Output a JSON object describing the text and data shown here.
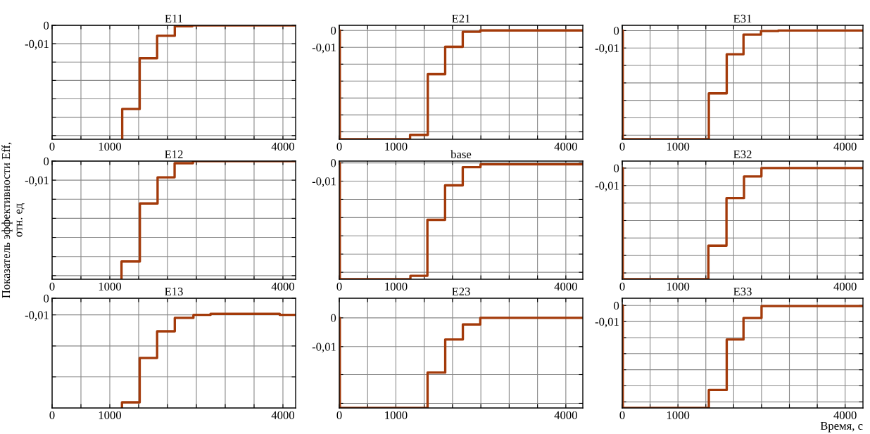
{
  "chart_data": [
    {
      "type": "step",
      "title": "E11",
      "color": "#a33a0a",
      "grid": true,
      "xlim": [
        0,
        4220
      ],
      "ylim": [
        -0.062,
        0
      ],
      "xticks": [
        0,
        {
          "value": 500,
          "label": null
        },
        1000,
        {
          "value": 1500,
          "label": null
        },
        {
          "value": 2000,
          "label": null
        },
        {
          "value": 2500,
          "label": null
        },
        {
          "value": 3000,
          "label": null
        },
        {
          "value": 3500,
          "label": null
        },
        4000
      ],
      "yticks": [
        0,
        {
          "value": -0.01,
          "label": "-0,01"
        },
        {
          "value": -0.02,
          "label": null
        },
        {
          "value": -0.03,
          "label": null
        },
        {
          "value": -0.04,
          "label": null
        },
        {
          "value": -0.05,
          "label": null
        },
        {
          "value": -0.06,
          "label": null
        }
      ],
      "x": [
        1215,
        1215,
        1518,
        1820,
        2126,
        2430,
        4220
      ],
      "values": [
        -0.062,
        -0.0455,
        -0.0179,
        -0.0057,
        -0.0005,
        0,
        0
      ]
    },
    {
      "type": "step",
      "title": "E21",
      "color": "#a33a0a",
      "grid": true,
      "xlim": [
        0,
        4300
      ],
      "ylim": [
        -0.0644,
        0.003
      ],
      "xticks": [
        0,
        {
          "value": 500,
          "label": null
        },
        1000,
        {
          "value": 1500,
          "label": null
        },
        {
          "value": 2000,
          "label": null
        },
        {
          "value": 2500,
          "label": null
        },
        {
          "value": 3000,
          "label": null
        },
        {
          "value": 3500,
          "label": null
        },
        4000
      ],
      "yticks": [
        0,
        {
          "value": -0.01,
          "label": "-0,01"
        },
        {
          "value": -0.02,
          "label": null
        },
        {
          "value": -0.03,
          "label": null
        },
        {
          "value": -0.04,
          "label": null
        },
        {
          "value": -0.05,
          "label": null
        },
        {
          "value": -0.06,
          "label": null
        }
      ],
      "x": [
        0,
        10,
        1250,
        1563,
        1870,
        2180,
        2490,
        4300
      ],
      "values": [
        0,
        -0.0644,
        -0.0618,
        -0.0259,
        -0.0097,
        -0.0008,
        0,
        0
      ]
    },
    {
      "type": "step",
      "title": "E31",
      "color": "#a33a0a",
      "grid": true,
      "xlim": [
        0,
        4320
      ],
      "ylim": [
        -0.0623,
        0.003
      ],
      "xticks": [
        0,
        {
          "value": 500,
          "label": null
        },
        1000,
        {
          "value": 1500,
          "label": null
        },
        {
          "value": 2000,
          "label": null
        },
        {
          "value": 2500,
          "label": null
        },
        {
          "value": 3000,
          "label": null
        },
        {
          "value": 3500,
          "label": null
        },
        4000
      ],
      "yticks": [
        0,
        {
          "value": -0.01,
          "label": "-0,01"
        },
        {
          "value": -0.02,
          "label": null
        },
        {
          "value": -0.03,
          "label": null
        },
        {
          "value": -0.04,
          "label": null
        },
        {
          "value": -0.05,
          "label": null
        },
        {
          "value": -0.06,
          "label": null
        }
      ],
      "x": [
        0,
        10,
        1554,
        1875,
        2176,
        2490,
        2800,
        4320
      ],
      "values": [
        0,
        -0.0623,
        -0.036,
        -0.0136,
        -0.0023,
        -0.0003,
        0,
        0
      ]
    },
    {
      "type": "step",
      "title": "E12",
      "ylabel": "Показатель эффективности Eff,\nотн. ед",
      "color": "#a33a0a",
      "grid": true,
      "xlim": [
        0,
        4220
      ],
      "ylim": [
        -0.0619,
        0
      ],
      "xticks": [
        0,
        {
          "value": 500,
          "label": null
        },
        1000,
        {
          "value": 1500,
          "label": null
        },
        {
          "value": 2000,
          "label": null
        },
        {
          "value": 2500,
          "label": null
        },
        {
          "value": 3000,
          "label": null
        },
        {
          "value": 3500,
          "label": null
        },
        4000
      ],
      "yticks": [
        0,
        {
          "value": -0.01,
          "label": "-0,01"
        },
        {
          "value": -0.02,
          "label": null
        },
        {
          "value": -0.03,
          "label": null
        },
        {
          "value": -0.04,
          "label": null
        },
        {
          "value": -0.05,
          "label": null
        },
        {
          "value": -0.06,
          "label": null
        }
      ],
      "x": [
        1203,
        1203,
        1521,
        1828,
        2123,
        2441,
        4220
      ],
      "values": [
        -0.0619,
        -0.0526,
        -0.0222,
        -0.0085,
        -0.0011,
        0,
        0
      ]
    },
    {
      "type": "step",
      "title": "base",
      "color": "#a33a0a",
      "grid": true,
      "xlim": [
        0,
        4300
      ],
      "ylim": [
        -0.0638,
        0.001
      ],
      "xticks": [
        0,
        {
          "value": 500,
          "label": null
        },
        1000,
        {
          "value": 1500,
          "label": null
        },
        {
          "value": 2000,
          "label": null
        },
        {
          "value": 2500,
          "label": null
        },
        {
          "value": 3000,
          "label": null
        },
        {
          "value": 3500,
          "label": null
        },
        4000
      ],
      "yticks": [
        0,
        {
          "value": -0.01,
          "label": "-0,01"
        },
        {
          "value": -0.02,
          "label": null
        },
        {
          "value": -0.03,
          "label": null
        },
        {
          "value": -0.04,
          "label": null
        },
        {
          "value": -0.05,
          "label": null
        },
        {
          "value": -0.06,
          "label": null
        }
      ],
      "x": [
        0,
        10,
        1256,
        1556,
        1868,
        2180,
        2494,
        4300
      ],
      "values": [
        0,
        -0.0638,
        -0.0619,
        -0.0312,
        -0.0123,
        -0.0023,
        -0.0008,
        -0.0008
      ]
    },
    {
      "type": "step",
      "title": "E32",
      "color": "#a33a0a",
      "grid": true,
      "xlim": [
        0,
        4320
      ],
      "ylim": [
        -0.0636,
        0.004
      ],
      "xticks": [
        0,
        {
          "value": 500,
          "label": null
        },
        1000,
        {
          "value": 1500,
          "label": null
        },
        {
          "value": 2000,
          "label": null
        },
        {
          "value": 2500,
          "label": null
        },
        {
          "value": 3000,
          "label": null
        },
        {
          "value": 3500,
          "label": null
        },
        4000
      ],
      "yticks": [
        0,
        {
          "value": -0.01,
          "label": "-0,01"
        },
        {
          "value": -0.02,
          "label": null
        },
        {
          "value": -0.03,
          "label": null
        },
        {
          "value": -0.04,
          "label": null
        },
        {
          "value": -0.05,
          "label": null
        },
        {
          "value": -0.06,
          "label": null
        }
      ],
      "x": [
        0,
        10,
        1546,
        1871,
        2185,
        2498,
        4320
      ],
      "values": [
        0,
        -0.0636,
        -0.0444,
        -0.0172,
        -0.0048,
        0,
        0
      ]
    },
    {
      "type": "step",
      "title": "E13",
      "color": "#a33a0a",
      "grid": true,
      "xlim": [
        0,
        4220
      ],
      "ylim": [
        -0.066,
        0
      ],
      "xticks": [
        0,
        {
          "value": 500,
          "label": null
        },
        1000,
        {
          "value": 1500,
          "label": null
        },
        {
          "value": 2000,
          "label": null
        },
        {
          "value": 2500,
          "label": null
        },
        {
          "value": 3000,
          "label": null
        },
        {
          "value": 3500,
          "label": null
        },
        4000
      ],
      "yticks": [
        0,
        {
          "value": -0.01,
          "label": "-0,01"
        },
        {
          "value": -0.0287,
          "label": null
        },
        {
          "value": -0.0473,
          "label": null
        }
      ],
      "x": [
        1211,
        1211,
        1518,
        1820,
        2126,
        2449,
        2745,
        3945,
        4220
      ],
      "values": [
        -0.066,
        -0.0626,
        -0.0359,
        -0.0199,
        -0.0118,
        -0.01,
        -0.0094,
        -0.01,
        -0.01
      ]
    },
    {
      "type": "step",
      "title": "E23",
      "color": "#a33a0a",
      "grid": true,
      "xlim": [
        0,
        4300
      ],
      "ylim": [
        -0.0313,
        0.0068
      ],
      "xticks": [
        0,
        {
          "value": 500,
          "label": null
        },
        1000,
        {
          "value": 1500,
          "label": null
        },
        {
          "value": 2000,
          "label": null
        },
        {
          "value": 2500,
          "label": null
        },
        {
          "value": 3000,
          "label": null
        },
        {
          "value": 3500,
          "label": null
        },
        4000
      ],
      "yticks": [
        0,
        {
          "value": -0.01,
          "label": "-0,01"
        },
        {
          "value": -0.0197,
          "label": null
        },
        {
          "value": -0.0297,
          "label": null
        }
      ],
      "x": [
        0,
        10,
        1559,
        1871,
        2182,
        2490,
        4300
      ],
      "values": [
        0,
        -0.0313,
        -0.019,
        -0.0075,
        -0.0023,
        0,
        0
      ]
    },
    {
      "type": "step",
      "title": "E33",
      "xlabel": "Время, с",
      "color": "#a33a0a",
      "grid": true,
      "xlim": [
        0,
        4320
      ],
      "ylim": [
        -0.0638,
        0.0045
      ],
      "xticks": [
        0,
        {
          "value": 500,
          "label": null
        },
        1000,
        {
          "value": 1500,
          "label": null
        },
        {
          "value": 2000,
          "label": null
        },
        {
          "value": 2500,
          "label": null
        },
        {
          "value": 3000,
          "label": null
        },
        {
          "value": 3500,
          "label": null
        },
        4000
      ],
      "yticks": [
        0,
        {
          "value": -0.01,
          "label": "-0,01"
        },
        {
          "value": -0.02,
          "label": null
        },
        {
          "value": -0.03,
          "label": null
        },
        {
          "value": -0.04,
          "label": null
        },
        {
          "value": -0.05,
          "label": null
        },
        {
          "value": -0.06,
          "label": null
        }
      ],
      "x": [
        0,
        10,
        1554,
        1875,
        2176,
        2500,
        4320
      ],
      "values": [
        0,
        -0.0638,
        -0.0526,
        -0.0212,
        -0.0078,
        -0.0004,
        -0.0004
      ]
    }
  ]
}
